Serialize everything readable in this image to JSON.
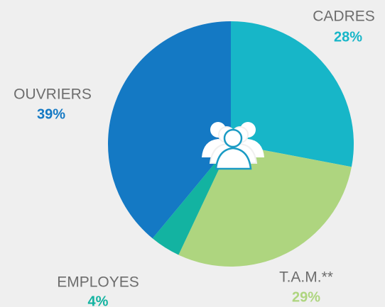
{
  "chart_data": {
    "type": "pie",
    "categories": [
      "CADRES",
      "T.A.M.**",
      "EMPLOYES",
      "OUVRIERS"
    ],
    "values": [
      28,
      29,
      4,
      39
    ],
    "value_labels": [
      "28%",
      "29%",
      "4%",
      "39%"
    ],
    "colors": [
      "#17b6c8",
      "#aed57f",
      "#13b3a1",
      "#1479c4"
    ]
  }
}
